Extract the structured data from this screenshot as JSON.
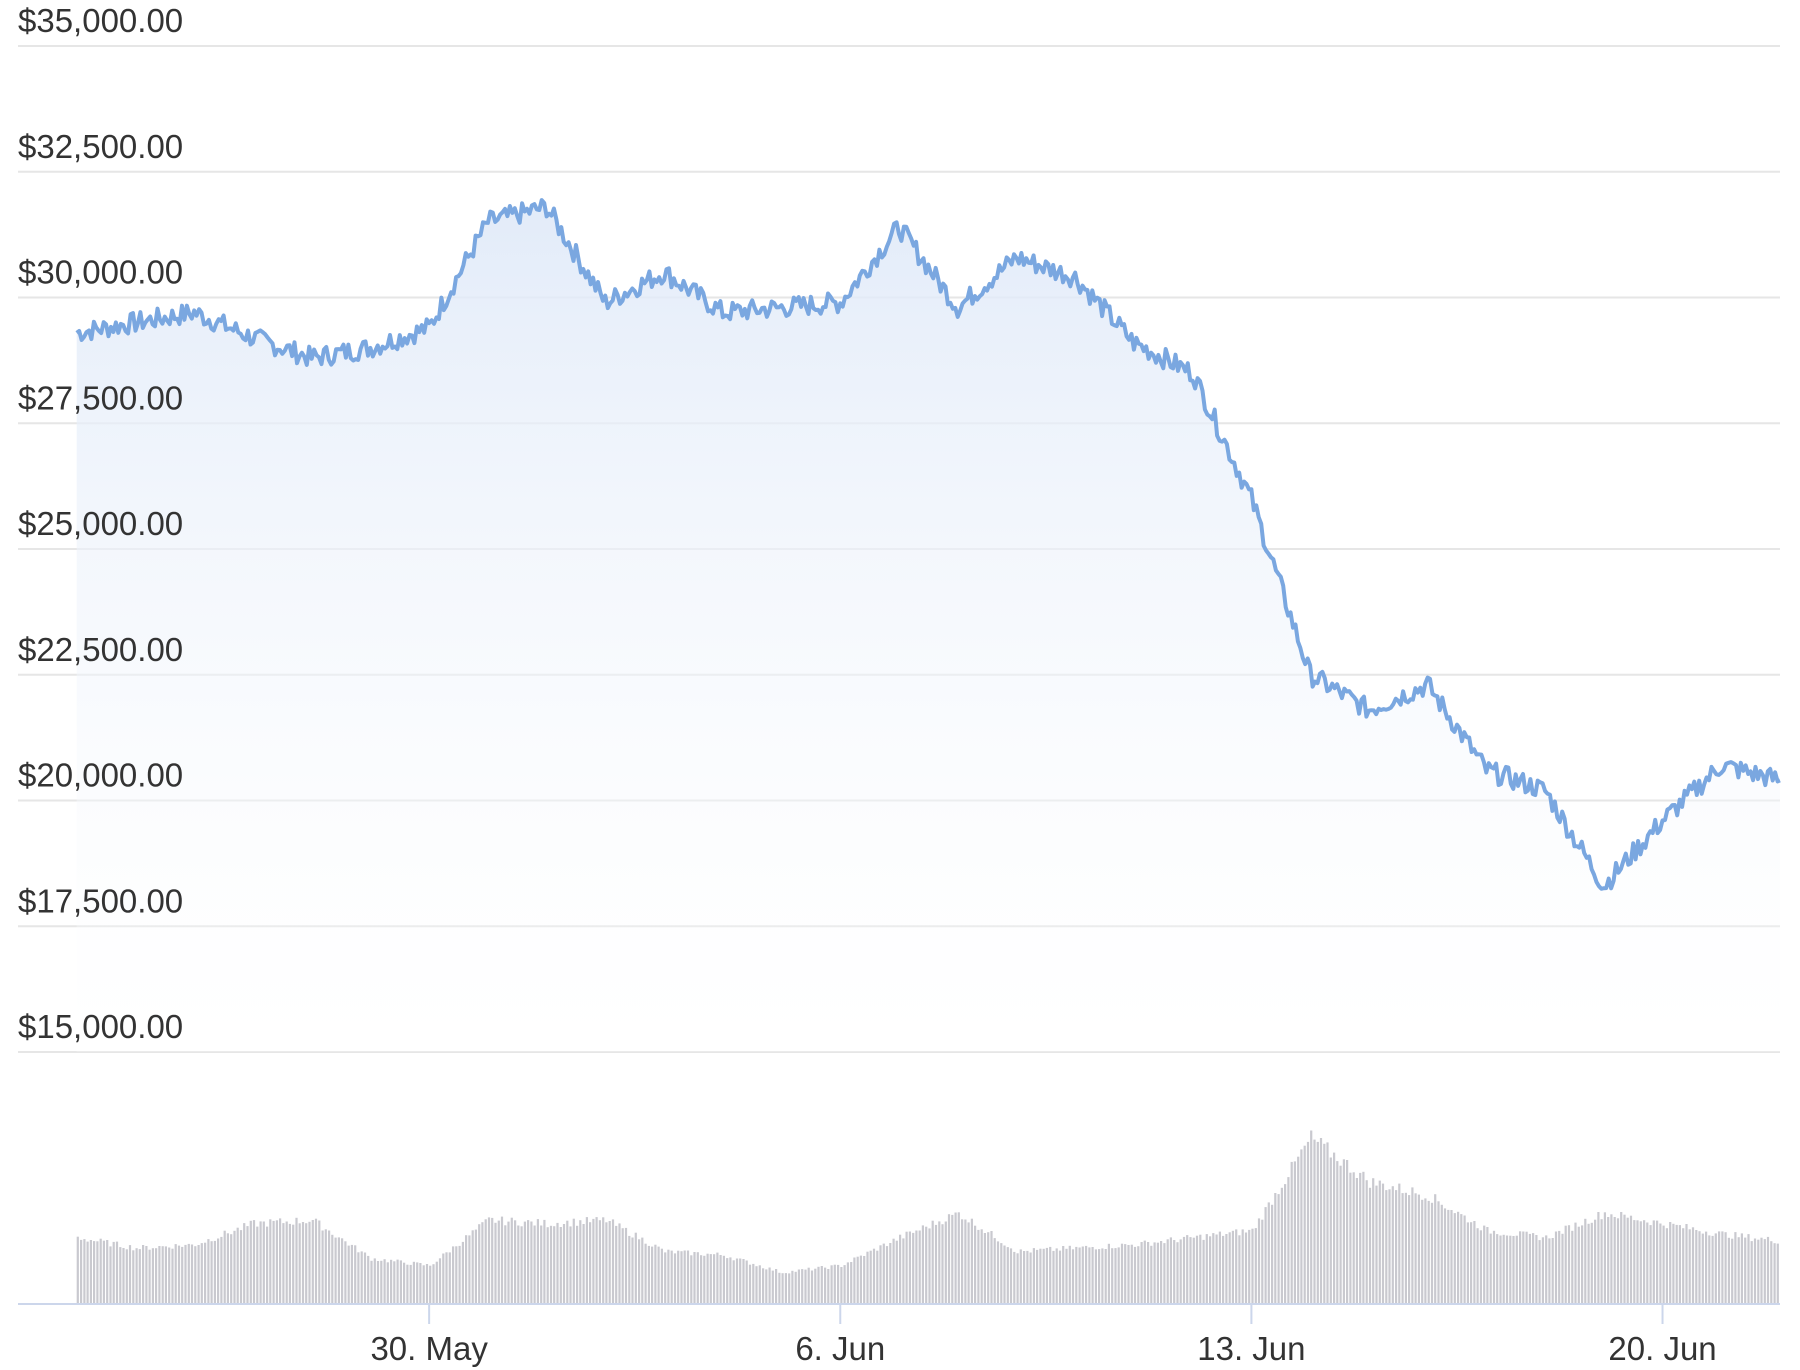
{
  "chart_data": {
    "type": "line",
    "price_series": {
      "color": "#7aa7e0",
      "fill_color": "#e8f0fb",
      "x": [
        "2022-05-24",
        "2022-05-25",
        "2022-05-26",
        "2022-05-27",
        "2022-05-28",
        "2022-05-29",
        "2022-05-30",
        "2022-05-31",
        "2022-06-01",
        "2022-06-02",
        "2022-06-03",
        "2022-06-04",
        "2022-06-05",
        "2022-06-06",
        "2022-06-07",
        "2022-06-08",
        "2022-06-09",
        "2022-06-10",
        "2022-06-11",
        "2022-06-12",
        "2022-06-13",
        "2022-06-14",
        "2022-06-15",
        "2022-06-16",
        "2022-06-17",
        "2022-06-18",
        "2022-06-19",
        "2022-06-20",
        "2022-06-21",
        "2022-06-22"
      ],
      "values": [
        29300,
        29500,
        29700,
        29200,
        28800,
        29000,
        29400,
        31500,
        31800,
        29900,
        30500,
        29700,
        29800,
        29900,
        31400,
        29800,
        30800,
        30400,
        29100,
        28500,
        26000,
        22500,
        21800,
        22300,
        20600,
        20200,
        18300,
        19600,
        20700,
        20400
      ]
    },
    "volume_series": {
      "color": "#c9c9cf",
      "x": [
        "2022-05-24",
        "2022-05-25",
        "2022-05-26",
        "2022-05-27",
        "2022-05-28",
        "2022-05-29",
        "2022-05-30",
        "2022-05-31",
        "2022-06-01",
        "2022-06-02",
        "2022-06-03",
        "2022-06-04",
        "2022-06-05",
        "2022-06-06",
        "2022-06-07",
        "2022-06-08",
        "2022-06-09",
        "2022-06-10",
        "2022-06-11",
        "2022-06-12",
        "2022-06-13",
        "2022-06-14",
        "2022-06-15",
        "2022-06-16",
        "2022-06-17",
        "2022-06-18",
        "2022-06-19",
        "2022-06-20",
        "2022-06-21",
        "2022-06-22"
      ],
      "values": [
        0.38,
        0.32,
        0.34,
        0.46,
        0.48,
        0.26,
        0.22,
        0.48,
        0.46,
        0.48,
        0.3,
        0.28,
        0.18,
        0.22,
        0.38,
        0.52,
        0.3,
        0.32,
        0.34,
        0.38,
        0.42,
        0.95,
        0.7,
        0.62,
        0.42,
        0.38,
        0.52,
        0.46,
        0.4,
        0.36
      ]
    },
    "y_ticks": [
      "$35,000.00",
      "$32,500.00",
      "$30,000.00",
      "$27,500.00",
      "$25,000.00",
      "$22,500.00",
      "$20,000.00",
      "$17,500.00",
      "$15,000.00"
    ],
    "y_tick_values": [
      35000,
      32500,
      30000,
      27500,
      25000,
      22500,
      20000,
      17500,
      15000
    ],
    "ylim": [
      15000,
      35000
    ],
    "x_ticks": [
      "30. May",
      "6. Jun",
      "13. Jun",
      "20. Jun"
    ],
    "x_tick_values": [
      "2022-05-30",
      "2022-06-06",
      "2022-06-13",
      "2022-06-20"
    ],
    "xlim": [
      "2022-05-23",
      "2022-06-22"
    ],
    "grid": true,
    "legend": "none"
  }
}
